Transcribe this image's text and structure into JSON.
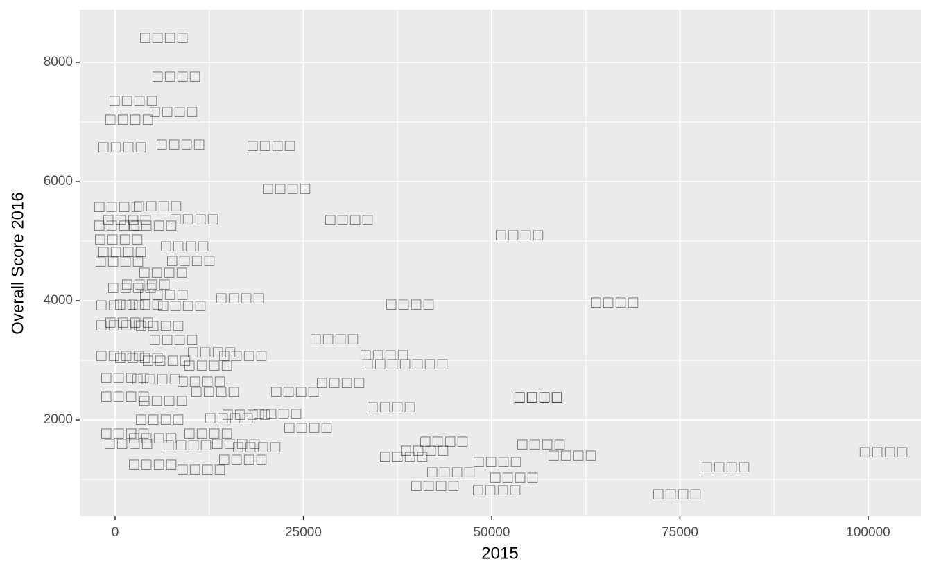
{
  "chart_data": {
    "type": "scatter",
    "xlabel": "2015",
    "ylabel": "Overall Score 2016",
    "xlim": [
      -4696,
      107000
    ],
    "ylim": [
      384,
      8884
    ],
    "xticks": [
      0,
      25000,
      50000,
      75000,
      100000
    ],
    "yticks": [
      2000,
      4000,
      6000,
      8000
    ],
    "x_minor_breaks": [
      12500,
      37500,
      62500,
      87500
    ],
    "y_minor_breaks": [
      1000,
      3000,
      5000,
      7000
    ],
    "grid": true,
    "x": [
      6446,
      8103,
      2394,
      7735,
      1842,
      921,
      8656,
      20718,
      22744,
      31031,
      53683,
      66299,
      39134,
      16574,
      29097,
      35727,
      38490,
      29926,
      36648,
      23849,
      56169,
      56169,
      41068,
      43646,
      56537,
      60681,
      102024,
      81031,
      74586,
      52946,
      50644,
      42449,
      44567,
      50736,
      38306,
      25598,
      368,
      5617,
      10497,
      1565,
      368,
      4972,
      460,
      9208,
      921,
      10037,
      552,
      6354,
      2210,
      4052,
      6446,
      8840,
      645,
      3131,
      1842,
      5893,
      645,
      7735,
      12799,
      16943,
      645,
      3131,
      6814,
      12340,
      1289,
      5433,
      11418,
      13260,
      1289,
      6354,
      5893,
      15101,
      21547,
      17403,
      1289,
      4972,
      12340,
      16022,
      18784,
      4972,
      11418,
      16943,
      1750,
      9576
    ],
    "y": [
      8419,
      7767,
      7360,
      7174,
      7047,
      6581,
      6628,
      6605,
      5884,
      5360,
      5105,
      3977,
      3942,
      4047,
      3360,
      3093,
      2942,
      2628,
      2221,
      2477,
      2384,
      2384,
      1488,
      1640,
      1593,
      1407,
      1465,
      1209,
      756,
      1035,
      826,
      895,
      1128,
      1302,
      1384,
      1872,
      5581,
      5593,
      5372,
      5360,
      5267,
      5267,
      5035,
      4919,
      4826,
      4674,
      4663,
      4477,
      4221,
      4279,
      4105,
      3919,
      3930,
      3942,
      3639,
      3581,
      3593,
      3349,
      3140,
      3081,
      3081,
      3047,
      3000,
      2919,
      2709,
      2686,
      2651,
      2477,
      2395,
      2326,
      2012,
      2035,
      2105,
      2093,
      1779,
      1698,
      1779,
      1605,
      1547,
      1256,
      1174,
      1337,
      1605,
      1581
    ],
    "labels": [
      "□□□□",
      "□□□□",
      "□□□□",
      "□□□□",
      "□□□□",
      "□□□□",
      "□□□□",
      "□□□□",
      "□□□□",
      "□□□□",
      "□□□□",
      "□□□□",
      "□□□□",
      "□□□□",
      "□□□□",
      "□□□□",
      "□□□□□□□",
      "□□□□",
      "□□□□",
      "□□□□",
      "□□□□",
      "□□□□",
      "□□□□",
      "□□□□",
      "□□□□",
      "□□□□",
      "□□□□",
      "□□□□",
      "□□□□",
      "□□□□",
      "□□□□",
      "□□□□",
      "□□□□",
      "□□□□",
      "□□□□",
      "□□□□",
      "□□□□",
      "□□□□",
      "□□□□",
      "□□□□",
      "□□□□",
      "□□□□",
      "□□□□",
      "□□□□",
      "□□□□",
      "□□□□",
      "□□□□",
      "□□□□",
      "□□□□",
      "□□□□",
      "□□□□",
      "□□□□",
      "□□□□",
      "□□□□",
      "□□□□",
      "□□□□",
      "□□□□",
      "□□□□",
      "□□□□",
      "□□□□",
      "□□□□",
      "□□□□",
      "□□□□",
      "□□□□",
      "□□□□",
      "□□□□",
      "□□□□",
      "□□□□",
      "□□□□",
      "□□□□",
      "□□□□",
      "□□□□",
      "□□□□",
      "□□□□",
      "□□□□",
      "□□□□",
      "□□□□",
      "□□□□",
      "□□□□",
      "□□□□",
      "□□□□",
      "□□□□",
      "□□□□",
      "□□□□"
    ]
  }
}
